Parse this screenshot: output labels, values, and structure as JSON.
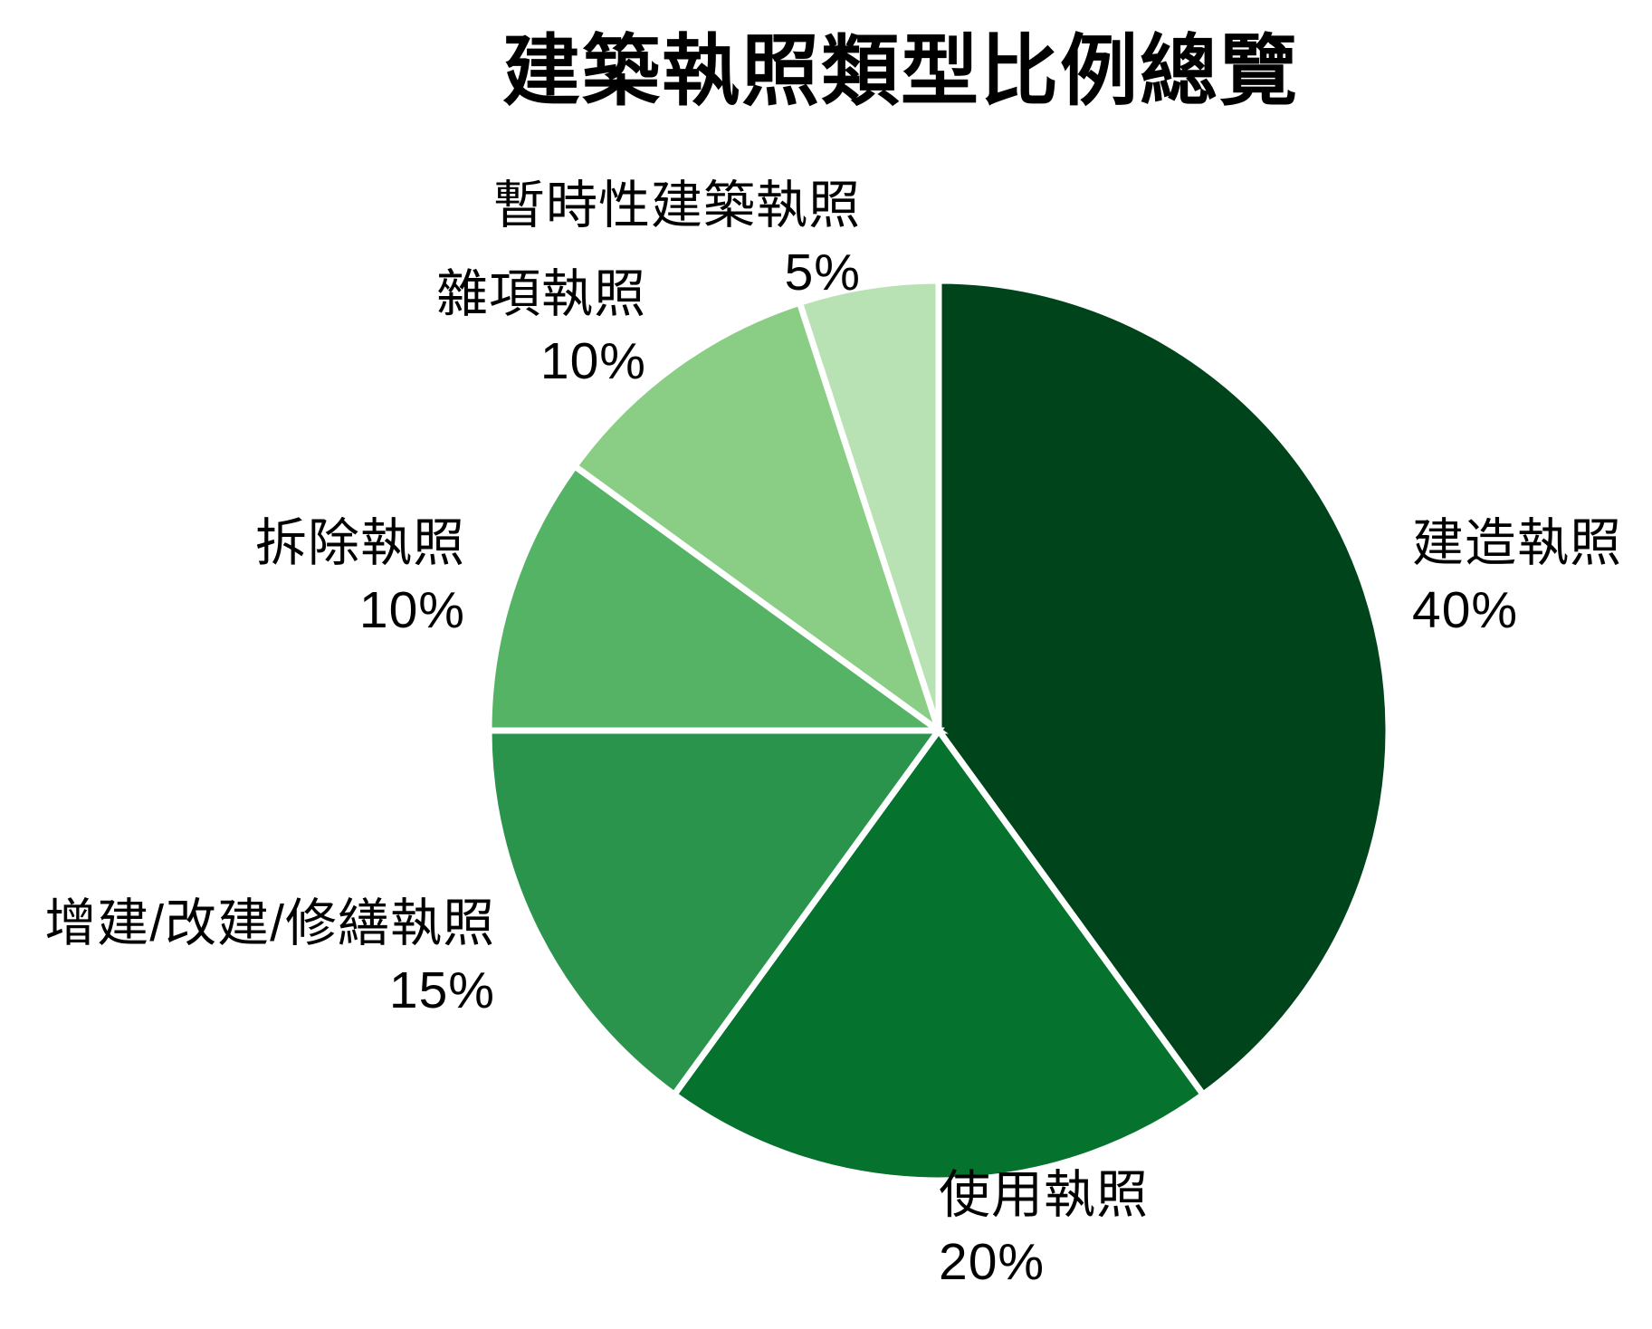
{
  "chart_data": {
    "type": "pie",
    "title": "建築執照類型比例總覽",
    "categories": [
      "建造執照",
      "使用執照",
      "增建/改建/修繕執照",
      "拆除執照",
      "雜項執照",
      "暫時性建築執照"
    ],
    "values": [
      40,
      20,
      15,
      10,
      10,
      5
    ],
    "percent_labels": [
      "40%",
      "20%",
      "15%",
      "10%",
      "10%",
      "5%"
    ],
    "colors": [
      "#00441b",
      "#05722e",
      "#2a944d",
      "#54b365",
      "#8ace86",
      "#b8e2b3"
    ],
    "wedge_edge_color": "#ffffff",
    "background": "#ffffff",
    "start_angle": "12 o'clock",
    "direction": "clockwise",
    "label_distance": 1.1,
    "legend": "none"
  }
}
